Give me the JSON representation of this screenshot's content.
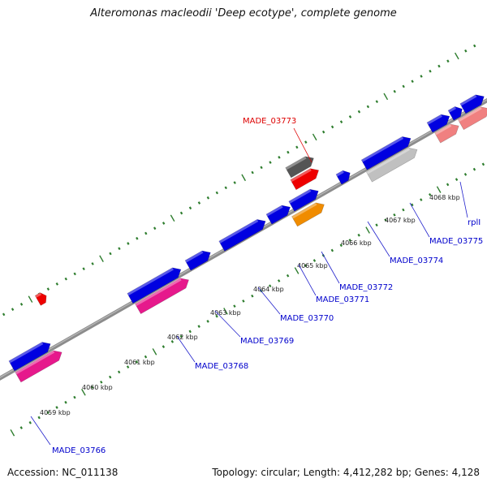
{
  "title": "Alteromonas macleodii 'Deep ecotype', complete genome",
  "footer": {
    "accession": "Accession: NC_011138",
    "topology": "Topology: circular; Length: 4,412,282 bp; Genes: 4,128"
  },
  "colors": {
    "backbone": "#8c8c8c",
    "tick_green": "#2e7d2e",
    "gene_blue": "#0000e0",
    "gene_pink": "#e6198c",
    "gene_salmon": "#f08080",
    "gene_gray": "#c0c0c0",
    "gene_dark_gray": "#555555",
    "gene_orange": "#f08c00",
    "gene_red": "#ee0000",
    "label_blue": "#0000cc",
    "label_red": "#dd0000",
    "leader": "#2222cc"
  },
  "scale": {
    "unit": "kbp",
    "ticks": [
      "4059 kbp",
      "4060 kbp",
      "4061 kbp",
      "4062 kbp",
      "4063 kbp",
      "4064 kbp",
      "4065 kbp",
      "4066 kbp",
      "4067 kbp",
      "4068 kbp"
    ]
  },
  "gene_labels": [
    {
      "name": "MADE_03766",
      "color": "blue"
    },
    {
      "name": "MADE_03768",
      "color": "blue"
    },
    {
      "name": "MADE_03769",
      "color": "blue"
    },
    {
      "name": "MADE_03770",
      "color": "blue"
    },
    {
      "name": "MADE_03771",
      "color": "blue"
    },
    {
      "name": "MADE_03772",
      "color": "blue"
    },
    {
      "name": "MADE_03773",
      "color": "red"
    },
    {
      "name": "MADE_03774",
      "color": "blue"
    },
    {
      "name": "MADE_03775",
      "color": "blue"
    },
    {
      "name": "rplI",
      "color": "blue"
    }
  ]
}
